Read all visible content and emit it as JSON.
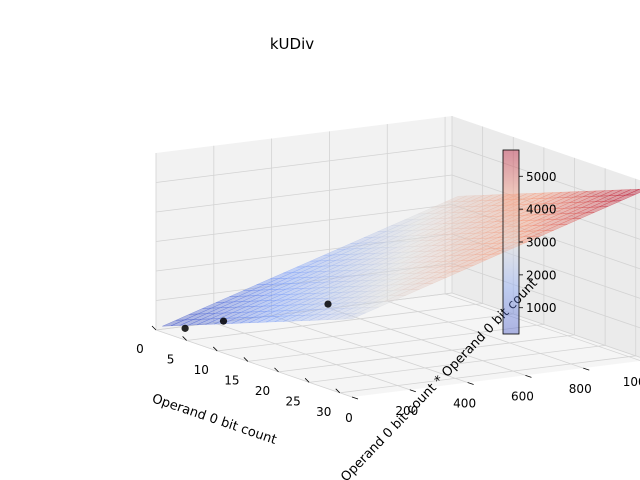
{
  "chart_data": {
    "type": "surface3d",
    "title": "kUDiv",
    "xlabel": "Operand 0 bit count",
    "ylabel": "Operand 0 bit count * Operand 0 bit count",
    "zlabel": "",
    "xlim": [
      0,
      32
    ],
    "ylim": [
      0,
      1024
    ],
    "zlim": [
      0,
      6000
    ],
    "xticks": [
      "0",
      "5",
      "10",
      "15",
      "20",
      "25",
      "30"
    ],
    "yticks": [
      "0",
      "200",
      "400",
      "600",
      "800",
      "1000"
    ],
    "zticks": [
      "0",
      "1000",
      "2000",
      "3000",
      "4000",
      "5000"
    ],
    "grid": true,
    "colormap": "coolwarm",
    "surface": {
      "x_range": [
        1,
        32
      ],
      "y_range": [
        1,
        1024
      ],
      "corner_values": {
        "x1_y1": 200,
        "x32_y1": 2650,
        "x1_y1024": 3350,
        "x32_y1024": 5800
      }
    },
    "points": [
      {
        "x": 4,
        "y": 16,
        "z": 320
      },
      {
        "x": 8,
        "y": 64,
        "z": 790
      },
      {
        "x": 16,
        "y": 256,
        "z": 1700
      },
      {
        "x": 32,
        "y": 1024,
        "z": 5800
      }
    ],
    "colorbar": {
      "ticks": [
        "1000",
        "2000",
        "3000",
        "4000",
        "5000"
      ],
      "range": [
        200,
        5800
      ]
    }
  }
}
